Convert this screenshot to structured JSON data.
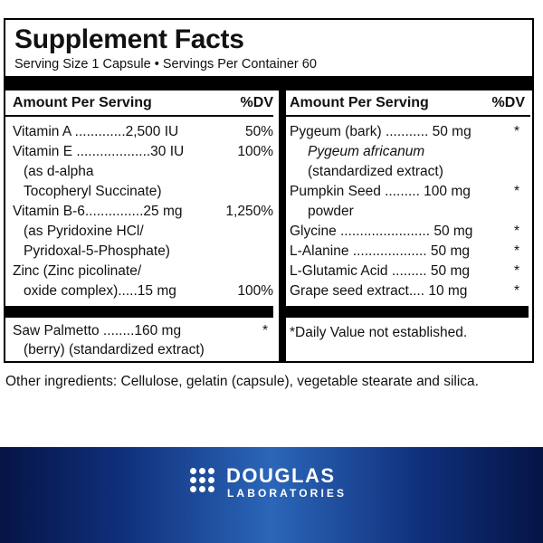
{
  "title": "Supplement Facts",
  "serving": "Serving Size 1 Capsule • Servings Per Container 60",
  "left": {
    "header_amount": "Amount Per Serving",
    "header_dv": "%DV",
    "rows": [
      {
        "text": "Vitamin A .............2,500 IU",
        "dv": "50%"
      },
      {
        "text": "Vitamin E ...................30 IU",
        "dv": "100%"
      },
      {
        "text": "(as d-alpha",
        "dv": ""
      },
      {
        "text": "Tocopheryl Succinate)",
        "dv": ""
      },
      {
        "text": "Vitamin B-6...............25 mg",
        "dv": "1,250%"
      },
      {
        "text": "(as Pyridoxine HCl/",
        "dv": ""
      },
      {
        "text": "Pyridoxal-5-Phosphate)",
        "dv": ""
      },
      {
        "text": "Zinc (Zinc picolinate/",
        "dv": ""
      },
      {
        "text": "oxide complex).....15 mg",
        "dv": "100%"
      }
    ],
    "saw": {
      "text": "Saw Palmetto ........160 mg",
      "dv": "*",
      "text2": "(berry) (standardized extract)"
    }
  },
  "right": {
    "header_amount": "Amount Per Serving",
    "header_dv": "%DV",
    "rows": [
      {
        "text": "Pygeum (bark) ........... 50 mg",
        "dv": "*"
      },
      {
        "text": "Pygeum africanum",
        "dv": ""
      },
      {
        "text": "(standardized extract)",
        "dv": ""
      },
      {
        "text": "Pumpkin Seed ......... 100 mg",
        "dv": "*"
      },
      {
        "text": "powder",
        "dv": ""
      },
      {
        "text": "Glycine ....................... 50 mg",
        "dv": "*"
      },
      {
        "text": "L-Alanine ................... 50 mg",
        "dv": "*"
      },
      {
        "text": "L-Glutamic Acid ......... 50 mg",
        "dv": "*"
      },
      {
        "text": "Grape seed extract.... 10 mg",
        "dv": "*"
      }
    ],
    "footnote": "*Daily Value not established."
  },
  "other_ingredients": "Other ingredients: Cellulose, gelatin (capsule), vegetable stearate and silica.",
  "brand": {
    "name": "DOUGLAS",
    "sub": "LABORATORIES",
    "logo_icon": "dots-grid-icon"
  }
}
